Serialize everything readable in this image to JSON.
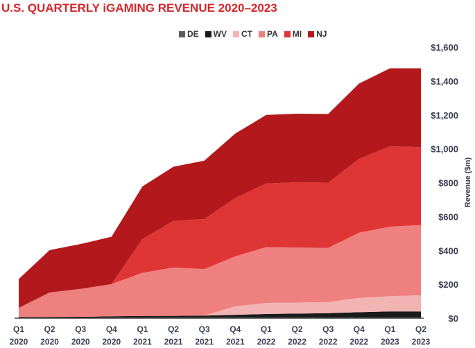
{
  "chart_data": {
    "type": "area",
    "stacked": true,
    "title": "U.S. QUARTERLY iGAMING REVENUE 2020–2023",
    "xlabel": "",
    "ylabel": "Revenue ($m)",
    "ylim": [
      0,
      1600
    ],
    "y_ticks": [
      "$0",
      "$200",
      "$400",
      "$600",
      "$800",
      "$1,000",
      "$1,200",
      "$1,400",
      "$1,600"
    ],
    "y_tick_values": [
      0,
      200,
      400,
      600,
      800,
      1000,
      1200,
      1400,
      1600
    ],
    "grid": false,
    "legend_position": "top",
    "categories": [
      [
        "Q1",
        "2020"
      ],
      [
        "Q2",
        "2020"
      ],
      [
        "Q3",
        "2020"
      ],
      [
        "Q4",
        "2020"
      ],
      [
        "Q1",
        "2021"
      ],
      [
        "Q2",
        "2021"
      ],
      [
        "Q3",
        "2021"
      ],
      [
        "Q4",
        "2021"
      ],
      [
        "Q1",
        "2022"
      ],
      [
        "Q2",
        "2022"
      ],
      [
        "Q3",
        "2022"
      ],
      [
        "Q4",
        "2022"
      ],
      [
        "Q1",
        "2023"
      ],
      [
        "Q2",
        "2023"
      ]
    ],
    "series": [
      {
        "name": "DE",
        "color": "#5a5a5a",
        "values": [
          4,
          4,
          4,
          5,
          5,
          5,
          5,
          5,
          5,
          5,
          5,
          5,
          5,
          5
        ]
      },
      {
        "name": "WV",
        "color": "#1a1a1a",
        "values": [
          2,
          3,
          4,
          6,
          8,
          9,
          10,
          15,
          20,
          22,
          25,
          30,
          35,
          35
        ]
      },
      {
        "name": "CT",
        "color": "#f2b3b3",
        "values": [
          0,
          0,
          0,
          0,
          0,
          0,
          0,
          50,
          65,
          65,
          65,
          85,
          90,
          95
        ]
      },
      {
        "name": "PA",
        "color": "#ef8080",
        "values": [
          55,
          145,
          165,
          190,
          255,
          285,
          275,
          295,
          330,
          325,
          320,
          385,
          410,
          415
        ]
      },
      {
        "name": "MI",
        "color": "#e03535",
        "values": [
          0,
          0,
          0,
          0,
          200,
          275,
          295,
          345,
          375,
          385,
          385,
          435,
          475,
          460
        ]
      },
      {
        "name": "NJ",
        "color": "#b3191c",
        "values": [
          170,
          250,
          265,
          280,
          310,
          320,
          345,
          380,
          405,
          405,
          405,
          445,
          460,
          465
        ]
      }
    ]
  }
}
